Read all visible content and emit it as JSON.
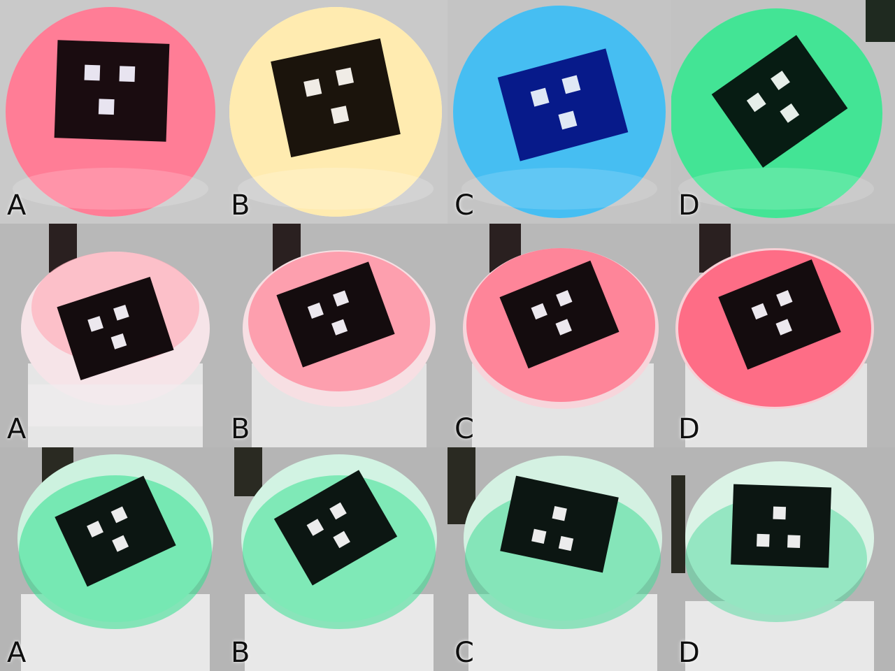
{
  "rows": [
    {
      "panels": [
        {
          "label": "A",
          "glow": "#ff6f8a",
          "rim": "#ffd0da",
          "marker": "#1a0c10"
        },
        {
          "label": "B",
          "glow": "#ffe9a8",
          "rim": "#fff7dc",
          "marker": "#1b140c"
        },
        {
          "label": "C",
          "glow": "#35b7f0",
          "rim": "#a8e3ff",
          "marker": "#071a8a"
        },
        {
          "label": "D",
          "glow": "#2ee08a",
          "rim": "#b8f5d6",
          "marker": "#071c13"
        }
      ]
    },
    {
      "panels": [
        {
          "label": "A",
          "glow": "#ffb0bc",
          "rim": "#f6e4e8",
          "marker": "#140c0e"
        },
        {
          "label": "B",
          "glow": "#ff8a9c",
          "rim": "#f7dfe3",
          "marker": "#140c0e"
        },
        {
          "label": "C",
          "glow": "#ff7088",
          "rim": "#f7d5db",
          "marker": "#140c0e"
        },
        {
          "label": "D",
          "glow": "#ff5c78",
          "rim": "#f7d0d6",
          "marker": "#140c0e"
        }
      ]
    },
    {
      "panels": [
        {
          "label": "A",
          "glow": "#2fe08e",
          "rim": "#cdf2df",
          "marker": "#0c1612"
        },
        {
          "label": "B",
          "glow": "#3ae094",
          "rim": "#d2f3e3",
          "marker": "#0c1612"
        },
        {
          "label": "C",
          "glow": "#43da98",
          "rim": "#d4f1e2",
          "marker": "#0c1612"
        },
        {
          "label": "D",
          "glow": "#50d99e",
          "rim": "#dbf3e6",
          "marker": "#0c1612"
        }
      ]
    }
  ]
}
